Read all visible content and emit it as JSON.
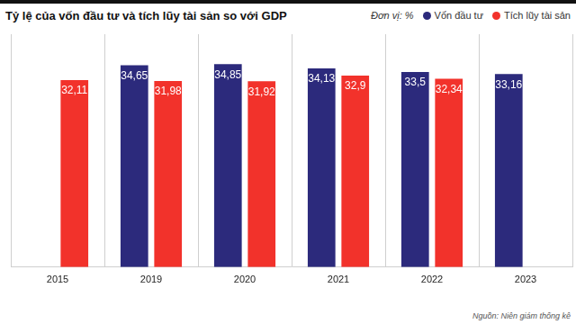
{
  "chart_data": {
    "type": "bar",
    "title": "Tỷ lệ của vốn đầu tư và tích lũy tài sản so với GDP",
    "annotations": [
      "Đơn vị: %",
      "Nguồn: Niên giám thống kê"
    ],
    "categories": [
      "2015",
      "2019",
      "2020",
      "2021",
      "2022",
      "2023"
    ],
    "series": [
      {
        "name": "Vốn đầu tư",
        "color": "#2c2a7c",
        "values": [
          null,
          34.65,
          34.85,
          34.13,
          33.5,
          33.16
        ],
        "value_labels": [
          null,
          "34,65",
          "34,85",
          "34,13",
          "33,5",
          "33,16"
        ]
      },
      {
        "name": "Tích lũy tài sản",
        "color": "#f2322b",
        "values": [
          32.11,
          31.98,
          31.92,
          32.9,
          32.34,
          null
        ],
        "value_labels": [
          "32,11",
          "31,98",
          "31,92",
          "32,9",
          "32,34",
          null
        ]
      }
    ],
    "ylim": [
      0,
      40
    ],
    "grid": true,
    "legend": "top-right",
    "data_labels": true,
    "tick_labels": "x"
  }
}
